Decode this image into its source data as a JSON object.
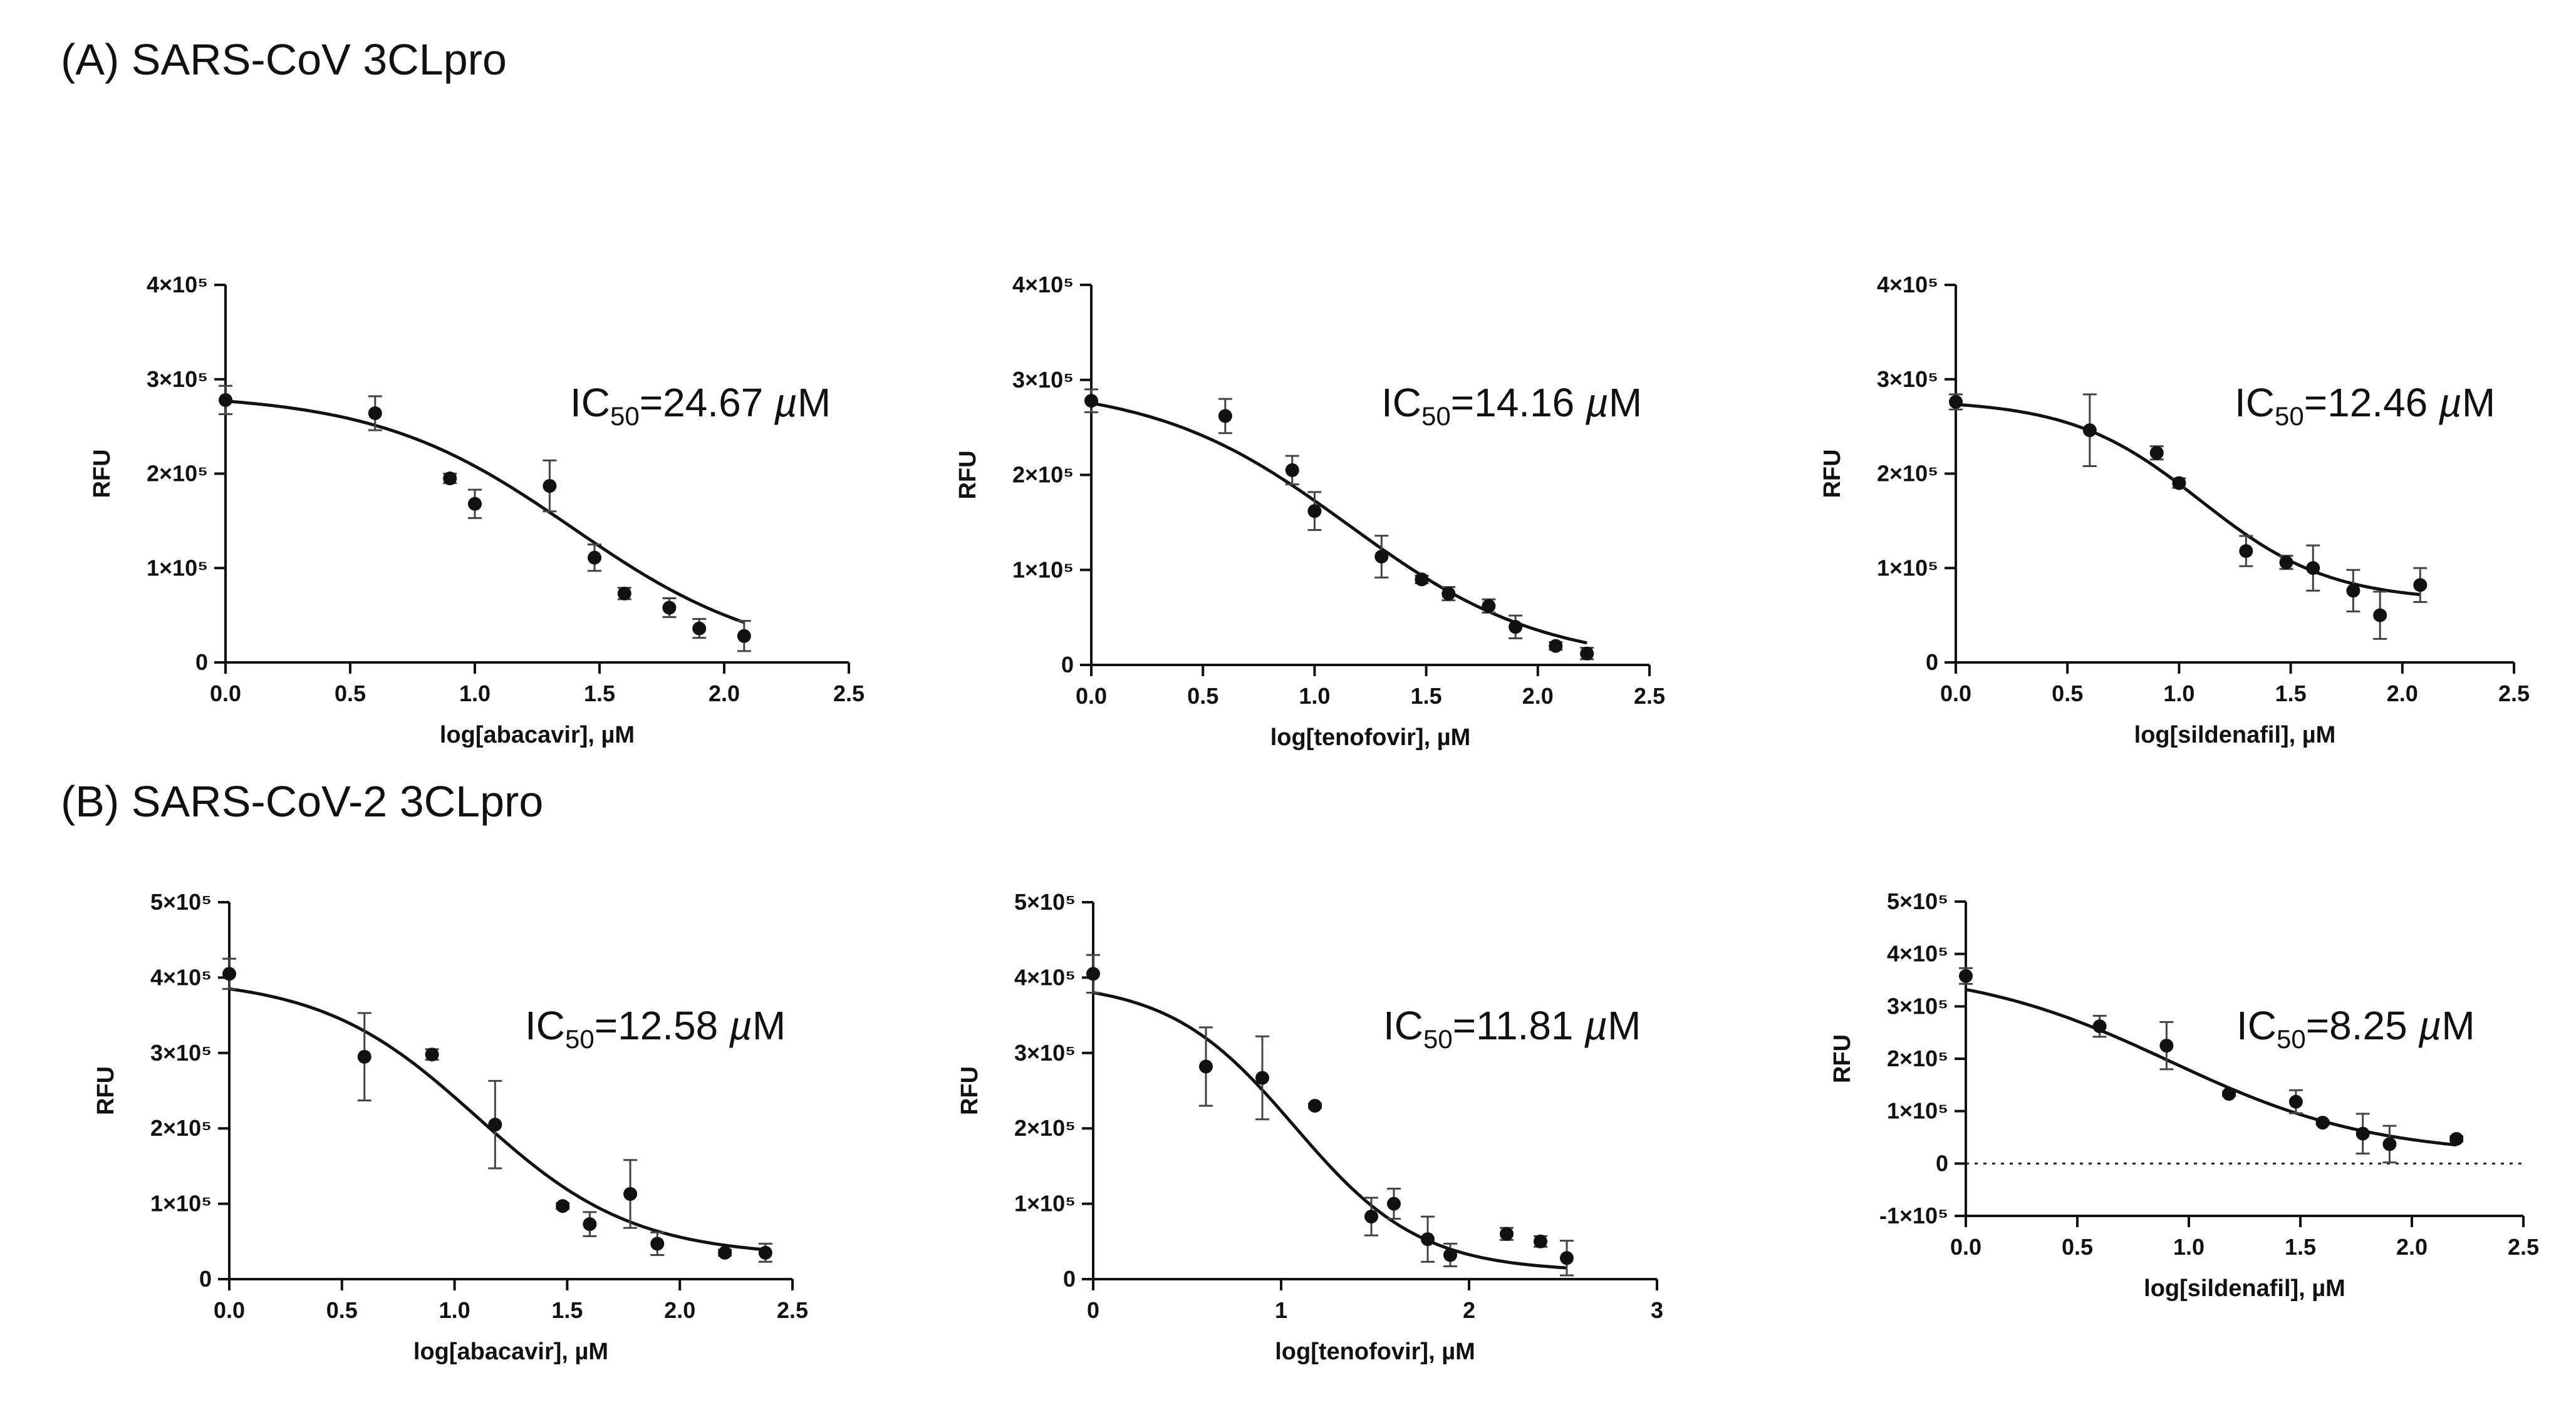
{
  "sections": [
    {
      "title": "(A) SARS-CoV 3CLpro"
    },
    {
      "title": "(B) SARS-CoV-2 3CLpro"
    }
  ],
  "chart_data": [
    {
      "type": "scatter",
      "section": "A",
      "xlabel": "log[abacavir], µM",
      "ylabel": "RFU",
      "xlim": [
        0,
        2.5
      ],
      "xticks": [
        0,
        0.5,
        1,
        1.5,
        2,
        2.5
      ],
      "xtick_labels": [
        "0.0",
        "0.5",
        "1.0",
        "1.5",
        "2.0",
        "2.5"
      ],
      "ylim": [
        0,
        400000
      ],
      "yticks": [
        0,
        100000,
        200000,
        300000,
        400000
      ],
      "ytick_labels": [
        "0",
        "1×10⁵",
        "2×10⁵",
        "3×10⁵",
        "4×10⁵"
      ],
      "annotation": {
        "prefix": "IC",
        "sub": "50",
        "value": "=24.67 ",
        "unit": "µM"
      },
      "fit": {
        "top": 285000,
        "bottom": 0,
        "logIC50": 1.392,
        "hill": 1.1,
        "x_range": [
          0,
          2.08
        ]
      },
      "series": [
        {
          "x": [
            0,
            0.6,
            0.9,
            1.0,
            1.3,
            1.48,
            1.6,
            1.78,
            1.9,
            2.08
          ],
          "y": [
            278000,
            264000,
            195000,
            168000,
            187000,
            111000,
            73000,
            58000,
            36000,
            28000
          ],
          "err": [
            15000,
            18000,
            5000,
            15000,
            27000,
            14000,
            6000,
            10000,
            10000,
            16000
          ]
        }
      ],
      "dashed_zero": false
    },
    {
      "type": "scatter",
      "section": "A",
      "xlabel": "log[tenofovir], µM",
      "ylabel": "RFU",
      "xlim": [
        0,
        2.5
      ],
      "xticks": [
        0,
        0.5,
        1,
        1.5,
        2,
        2.5
      ],
      "xtick_labels": [
        "0.0",
        "0.5",
        "1.0",
        "1.5",
        "2.0",
        "2.5"
      ],
      "ylim": [
        0,
        400000
      ],
      "yticks": [
        0,
        100000,
        200000,
        300000,
        400000
      ],
      "ytick_labels": [
        "0",
        "1×10⁵",
        "2×10⁵",
        "3×10⁵",
        "4×10⁵"
      ],
      "annotation": {
        "prefix": "IC",
        "sub": "50",
        "value": "=14.16 ",
        "unit": "µM"
      },
      "fit": {
        "top": 295000,
        "bottom": 0,
        "logIC50": 1.151,
        "hill": 1.0,
        "x_range": [
          0,
          2.22
        ]
      },
      "series": [
        {
          "x": [
            0,
            0.6,
            0.9,
            1.0,
            1.3,
            1.48,
            1.6,
            1.78,
            1.9,
            2.08,
            2.22
          ],
          "y": [
            278000,
            262000,
            205000,
            162000,
            114000,
            90000,
            75000,
            62000,
            40000,
            20000,
            12000
          ],
          "err": [
            12000,
            18000,
            15000,
            20000,
            22000,
            4000,
            7000,
            7000,
            12000,
            4000,
            6000
          ]
        }
      ],
      "dashed_zero": false
    },
    {
      "type": "scatter",
      "section": "A",
      "xlabel": "log[sildenafil], µM",
      "ylabel": "RFU",
      "xlim": [
        0,
        2.5
      ],
      "xticks": [
        0,
        0.5,
        1,
        1.5,
        2,
        2.5
      ],
      "xtick_labels": [
        "0.0",
        "0.5",
        "1.0",
        "1.5",
        "2.0",
        "2.5"
      ],
      "ylim": [
        0,
        400000
      ],
      "yticks": [
        0,
        100000,
        200000,
        300000,
        400000
      ],
      "ytick_labels": [
        "0",
        "1×10⁵",
        "2×10⁵",
        "3×10⁵",
        "4×10⁵"
      ],
      "annotation": {
        "prefix": "IC",
        "sub": "50",
        "value": "=12.46 ",
        "unit": "µM"
      },
      "fit": {
        "top": 278000,
        "bottom": 65000,
        "logIC50": 1.096,
        "hill": 1.5,
        "x_range": [
          0,
          2.08
        ]
      },
      "series": [
        {
          "x": [
            0,
            0.6,
            0.9,
            1.0,
            1.3,
            1.48,
            1.6,
            1.78,
            1.9,
            2.08
          ],
          "y": [
            276000,
            246000,
            222000,
            190000,
            118000,
            106000,
            100000,
            76000,
            50000,
            82000
          ],
          "err": [
            8000,
            38000,
            7000,
            5000,
            16000,
            7000,
            24000,
            22000,
            25000,
            18000
          ]
        }
      ],
      "dashed_zero": false
    },
    {
      "type": "scatter",
      "section": "B",
      "xlabel": "log[abacavir], µM",
      "ylabel": "RFU",
      "xlim": [
        0,
        2.5
      ],
      "xticks": [
        0,
        0.5,
        1,
        1.5,
        2,
        2.5
      ],
      "xtick_labels": [
        "0.0",
        "0.5",
        "1.0",
        "1.5",
        "2.0",
        "2.5"
      ],
      "ylim": [
        0,
        500000
      ],
      "yticks": [
        0,
        100000,
        200000,
        300000,
        400000,
        500000
      ],
      "ytick_labels": [
        "0",
        "1×10⁵",
        "2×10⁵",
        "3×10⁵",
        "4×10⁵",
        "5×10⁵"
      ],
      "annotation": {
        "prefix": "IC",
        "sub": "50",
        "value": "=12.58 ",
        "unit": "µM"
      },
      "fit": {
        "top": 400000,
        "bottom": 30000,
        "logIC50": 1.1,
        "hill": 1.25,
        "x_range": [
          0,
          2.4
        ]
      },
      "series": [
        {
          "x": [
            0,
            0.6,
            0.9,
            1.18,
            1.48,
            1.6,
            1.78,
            1.9,
            2.2,
            2.38
          ],
          "y": [
            405000,
            295000,
            298000,
            205000,
            97000,
            73000,
            113000,
            47000,
            35000,
            35000
          ],
          "err": [
            20000,
            58000,
            7000,
            58000,
            4000,
            16000,
            45000,
            15000,
            4000,
            12000
          ]
        }
      ],
      "dashed_zero": false
    },
    {
      "type": "scatter",
      "section": "B",
      "xlabel": "log[tenofovir], µM",
      "ylabel": "RFU",
      "xlim": [
        0,
        3
      ],
      "xticks": [
        0,
        1,
        2,
        3
      ],
      "xtick_labels": [
        "0",
        "1",
        "2",
        "3"
      ],
      "ylim": [
        0,
        500000
      ],
      "yticks": [
        0,
        100000,
        200000,
        300000,
        400000,
        500000
      ],
      "ytick_labels": [
        "0",
        "1×10⁵",
        "2×10⁵",
        "3×10⁵",
        "4×10⁵",
        "5×10⁵"
      ],
      "annotation": {
        "prefix": "IC",
        "sub": "50",
        "value": "=11.81 ",
        "unit": "µM"
      },
      "fit": {
        "top": 395000,
        "bottom": 10000,
        "logIC50": 1.072,
        "hill": 1.3,
        "x_range": [
          0,
          2.52
        ]
      },
      "series": [
        {
          "x": [
            0,
            0.6,
            0.9,
            1.18,
            1.48,
            1.6,
            1.78,
            1.9,
            2.2,
            2.38,
            2.52
          ],
          "y": [
            405000,
            282000,
            267000,
            230000,
            83000,
            100000,
            53000,
            32000,
            60000,
            50000,
            28000
          ],
          "err": [
            25000,
            52000,
            55000,
            3000,
            25000,
            20000,
            30000,
            15000,
            8000,
            7000,
            23000
          ]
        }
      ],
      "dashed_zero": false
    },
    {
      "type": "scatter",
      "section": "B",
      "xlabel": "log[sildenafil], µM",
      "ylabel": "RFU",
      "xlim": [
        0,
        2.5
      ],
      "xticks": [
        0,
        0.5,
        1,
        1.5,
        2,
        2.5
      ],
      "xtick_labels": [
        "0.0",
        "0.5",
        "1.0",
        "1.5",
        "2.0",
        "2.5"
      ],
      "ylim": [
        -100000,
        500000
      ],
      "yticks": [
        -100000,
        0,
        100000,
        200000,
        300000,
        400000,
        500000
      ],
      "ytick_labels": [
        "-1×10⁵",
        "0",
        "1×10⁵",
        "2×10⁵",
        "3×10⁵",
        "4×10⁵",
        "5×10⁵"
      ],
      "annotation": {
        "prefix": "IC",
        "sub": "50",
        "value": "=8.25 ",
        "unit": "µM"
      },
      "fit": {
        "top": 375000,
        "bottom": 15000,
        "logIC50": 0.916,
        "hill": 0.95,
        "x_range": [
          0,
          2.2
        ]
      },
      "series": [
        {
          "x": [
            0,
            0.6,
            0.9,
            1.18,
            1.48,
            1.6,
            1.78,
            1.9,
            2.2
          ],
          "y": [
            358000,
            262000,
            225000,
            133000,
            118000,
            78000,
            57000,
            37000,
            47000
          ],
          "err": [
            15000,
            20000,
            45000,
            4000,
            22000,
            4000,
            38000,
            35000,
            5000
          ]
        }
      ],
      "dashed_zero": true
    }
  ]
}
